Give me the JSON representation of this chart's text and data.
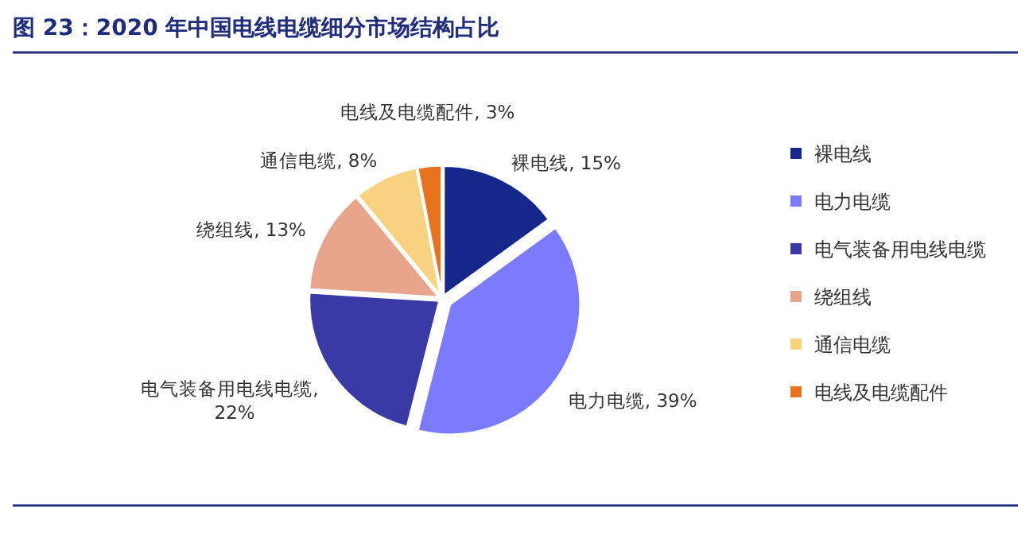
{
  "chart_data": {
    "type": "pie",
    "title": "图 23：2020 年中国电线电缆细分市场结构占比",
    "categories": [
      "裸电线",
      "电力电缆",
      "电气装备用电线电缆",
      "绕组线",
      "通信电缆",
      "电线及电缆配件"
    ],
    "values": [
      15,
      39,
      22,
      13,
      8,
      3
    ],
    "value_labels": [
      "裸电线, 15%",
      "电力电缆, 39%",
      "电气装备用电线电缆, 22%",
      "绕组线, 13%",
      "通信电缆, 8%",
      "电线及电缆配件, 3%"
    ],
    "colors": [
      "#14288c",
      "#7b7bff",
      "#3a3aa6",
      "#e8a58c",
      "#f8d27e",
      "#e8731e"
    ],
    "legend": "right"
  }
}
